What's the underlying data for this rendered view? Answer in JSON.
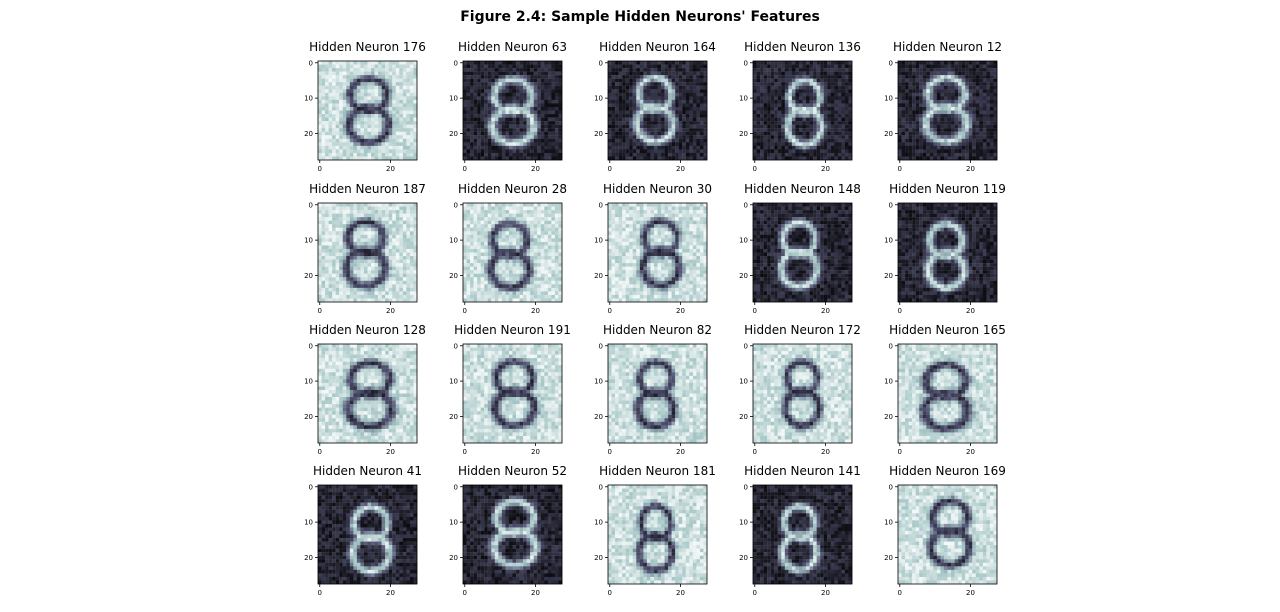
{
  "figure": {
    "title": "Figure 2.4: Sample Hidden Neurons' Features"
  },
  "chart_data": {
    "type": "heatmap",
    "title": "Figure 2.4: Sample Hidden Neurons' Features",
    "colormap": "bone",
    "image_size": [
      28,
      28
    ],
    "xlim": [
      0,
      27
    ],
    "ylim": [
      27,
      0
    ],
    "xticks": [
      "0",
      "20"
    ],
    "yticks": [
      "0",
      "10",
      "20"
    ],
    "grid": false,
    "rows": 4,
    "cols": 5,
    "panels": [
      {
        "title": "Hidden Neuron 176",
        "background": "light"
      },
      {
        "title": "Hidden Neuron 63",
        "background": "dark"
      },
      {
        "title": "Hidden Neuron 164",
        "background": "dark"
      },
      {
        "title": "Hidden Neuron 136",
        "background": "dark"
      },
      {
        "title": "Hidden Neuron 12",
        "background": "dark"
      },
      {
        "title": "Hidden Neuron 187",
        "background": "light"
      },
      {
        "title": "Hidden Neuron 28",
        "background": "light"
      },
      {
        "title": "Hidden Neuron 30",
        "background": "light"
      },
      {
        "title": "Hidden Neuron 148",
        "background": "dark"
      },
      {
        "title": "Hidden Neuron 119",
        "background": "dark"
      },
      {
        "title": "Hidden Neuron 128",
        "background": "light"
      },
      {
        "title": "Hidden Neuron 191",
        "background": "light"
      },
      {
        "title": "Hidden Neuron 82",
        "background": "light"
      },
      {
        "title": "Hidden Neuron 172",
        "background": "light"
      },
      {
        "title": "Hidden Neuron 165",
        "background": "light"
      },
      {
        "title": "Hidden Neuron 41",
        "background": "dark"
      },
      {
        "title": "Hidden Neuron 52",
        "background": "dark"
      },
      {
        "title": "Hidden Neuron 181",
        "background": "light"
      },
      {
        "title": "Hidden Neuron 141",
        "background": "dark"
      },
      {
        "title": "Hidden Neuron 169",
        "background": "light"
      }
    ]
  }
}
